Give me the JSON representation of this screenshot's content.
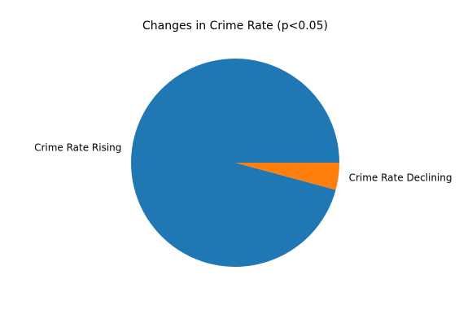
{
  "chart_data": {
    "type": "pie",
    "title": "Changes in Crime Rate (p<0.05)",
    "categories": [
      "Crime Rate Rising",
      "Crime Rate Declining"
    ],
    "values": [
      95.8,
      4.2
    ],
    "colors": [
      "#1f77b4",
      "#ff7f0e"
    ],
    "start_angle_deg": 0,
    "direction": "counterclockwise",
    "legend": "none"
  }
}
